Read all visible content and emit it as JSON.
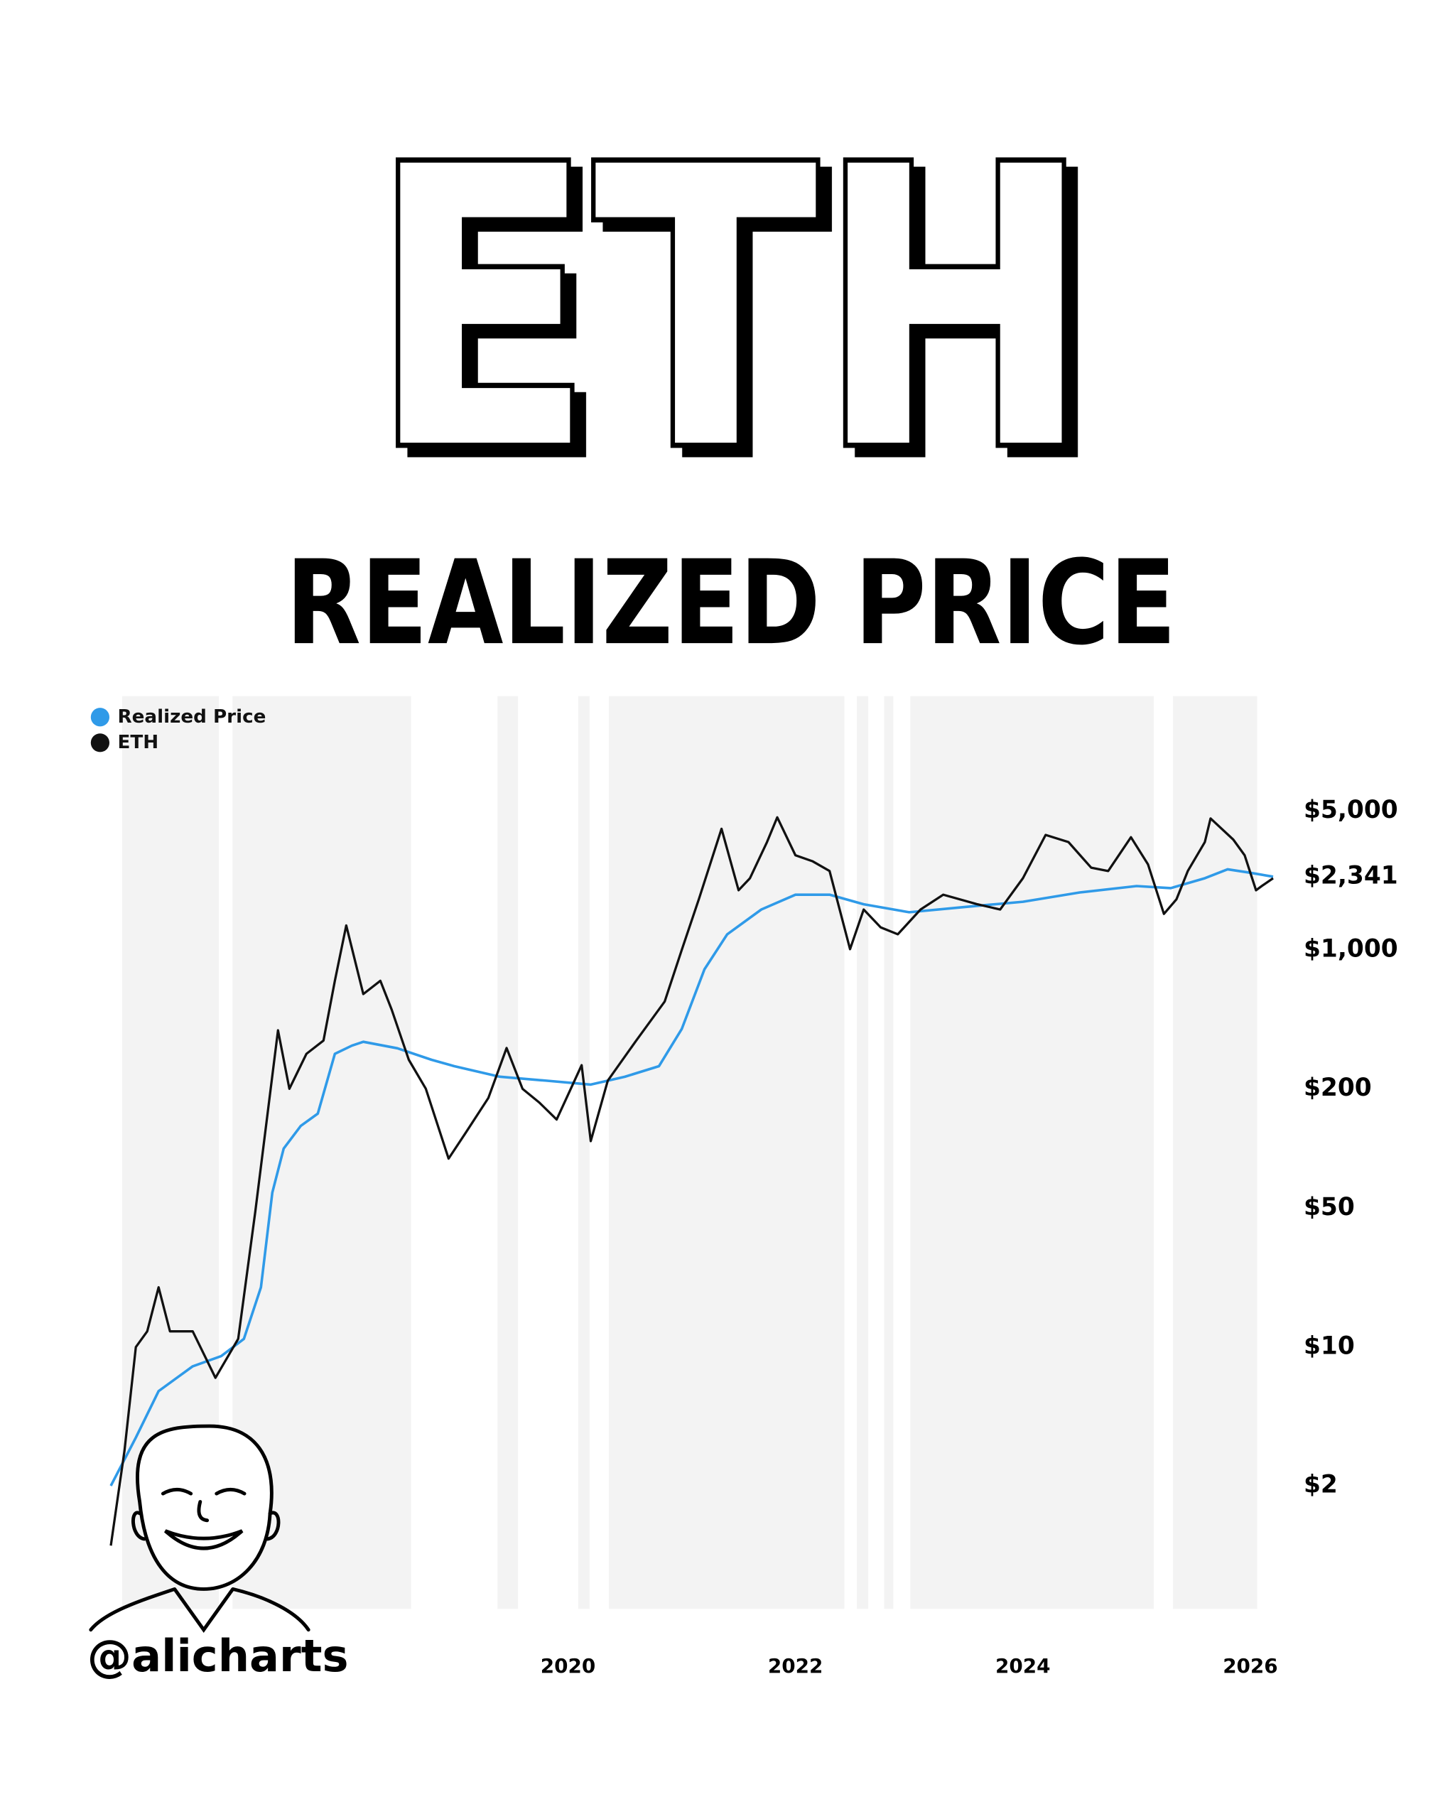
{
  "chart_data": {
    "type": "line",
    "title": "ETH",
    "subtitle": "REALIZED PRICE",
    "handle": "@alicharts",
    "log_scale": true,
    "grid": false,
    "legend": "top-left",
    "xlim": [
      2015.9,
      2026.3
    ],
    "xticks": [
      2020,
      2022,
      2024,
      2026
    ],
    "ylim": [
      0.48,
      19000
    ],
    "yticks": [
      {
        "value": 2,
        "label": "$2"
      },
      {
        "value": 10,
        "label": "$10"
      },
      {
        "value": 50,
        "label": "$50"
      },
      {
        "value": 200,
        "label": "$200"
      },
      {
        "value": 1000,
        "label": "$1,000"
      },
      {
        "value": 5000,
        "label": "$5,000"
      }
    ],
    "annotations": [
      {
        "value": 2341,
        "label": "$2,341",
        "color": "#2f9ae8"
      }
    ],
    "shaded_ranges": [
      [
        2016.08,
        2016.93
      ],
      [
        2017.05,
        2018.62
      ],
      [
        2019.38,
        2019.56
      ],
      [
        2020.09,
        2020.19
      ],
      [
        2020.36,
        2022.43
      ],
      [
        2022.54,
        2022.64
      ],
      [
        2022.78,
        2022.86
      ],
      [
        2023.01,
        2025.15
      ],
      [
        2025.32,
        2026.06
      ]
    ],
    "shade_color": "#f3f3f3",
    "series": [
      {
        "name": "Realized Price",
        "color": "#2f9ae8",
        "x": [
          2015.98,
          2016.2,
          2016.4,
          2016.7,
          2016.95,
          2017.15,
          2017.3,
          2017.4,
          2017.5,
          2017.65,
          2017.8,
          2017.95,
          2018.1,
          2018.2,
          2018.5,
          2018.8,
          2019.0,
          2019.4,
          2019.8,
          2020.2,
          2020.5,
          2020.8,
          2021.0,
          2021.2,
          2021.4,
          2021.7,
          2022.0,
          2022.3,
          2022.6,
          2023.0,
          2023.5,
          2024.0,
          2024.5,
          2025.0,
          2025.3,
          2025.6,
          2025.8,
          2026.0,
          2026.2
        ],
        "values": [
          2,
          3.5,
          6,
          8,
          9,
          11,
          20,
          60,
          100,
          130,
          150,
          300,
          330,
          345,
          320,
          280,
          260,
          230,
          220,
          210,
          230,
          260,
          400,
          800,
          1200,
          1600,
          1900,
          1900,
          1700,
          1550,
          1650,
          1750,
          1950,
          2100,
          2050,
          2300,
          2550,
          2450,
          2341
        ]
      },
      {
        "name": "ETH",
        "color": "#111111",
        "x": [
          2015.98,
          2016.1,
          2016.2,
          2016.3,
          2016.4,
          2016.5,
          2016.7,
          2016.9,
          2017.1,
          2017.25,
          2017.45,
          2017.55,
          2017.7,
          2017.85,
          2017.95,
          2018.05,
          2018.2,
          2018.35,
          2018.45,
          2018.6,
          2018.75,
          2018.95,
          2019.1,
          2019.3,
          2019.46,
          2019.6,
          2019.75,
          2019.9,
          2020.12,
          2020.2,
          2020.35,
          2020.6,
          2020.85,
          2021.0,
          2021.15,
          2021.35,
          2021.5,
          2021.6,
          2021.75,
          2021.84,
          2022.0,
          2022.15,
          2022.3,
          2022.48,
          2022.6,
          2022.75,
          2022.9,
          2023.1,
          2023.3,
          2023.6,
          2023.8,
          2024.0,
          2024.2,
          2024.4,
          2024.6,
          2024.75,
          2024.95,
          2025.1,
          2025.24,
          2025.35,
          2025.45,
          2025.6,
          2025.65,
          2025.85,
          2025.95,
          2026.05,
          2026.1,
          2026.2
        ],
        "values": [
          1,
          3,
          10,
          12,
          20,
          12,
          12,
          7,
          11,
          48,
          394,
          200,
          300,
          350,
          700,
          1330,
          600,
          700,
          500,
          280,
          200,
          89,
          120,
          180,
          321,
          200,
          170,
          140,
          263,
          109,
          220,
          350,
          550,
          1000,
          1800,
          4080,
          2000,
          2300,
          3500,
          4660,
          3000,
          2800,
          2500,
          1010,
          1600,
          1300,
          1200,
          1600,
          1900,
          1700,
          1600,
          2300,
          3800,
          3500,
          2600,
          2500,
          3700,
          2700,
          1520,
          1800,
          2500,
          3500,
          4600,
          3600,
          3000,
          2000,
          2100,
          2300
        ]
      }
    ]
  }
}
